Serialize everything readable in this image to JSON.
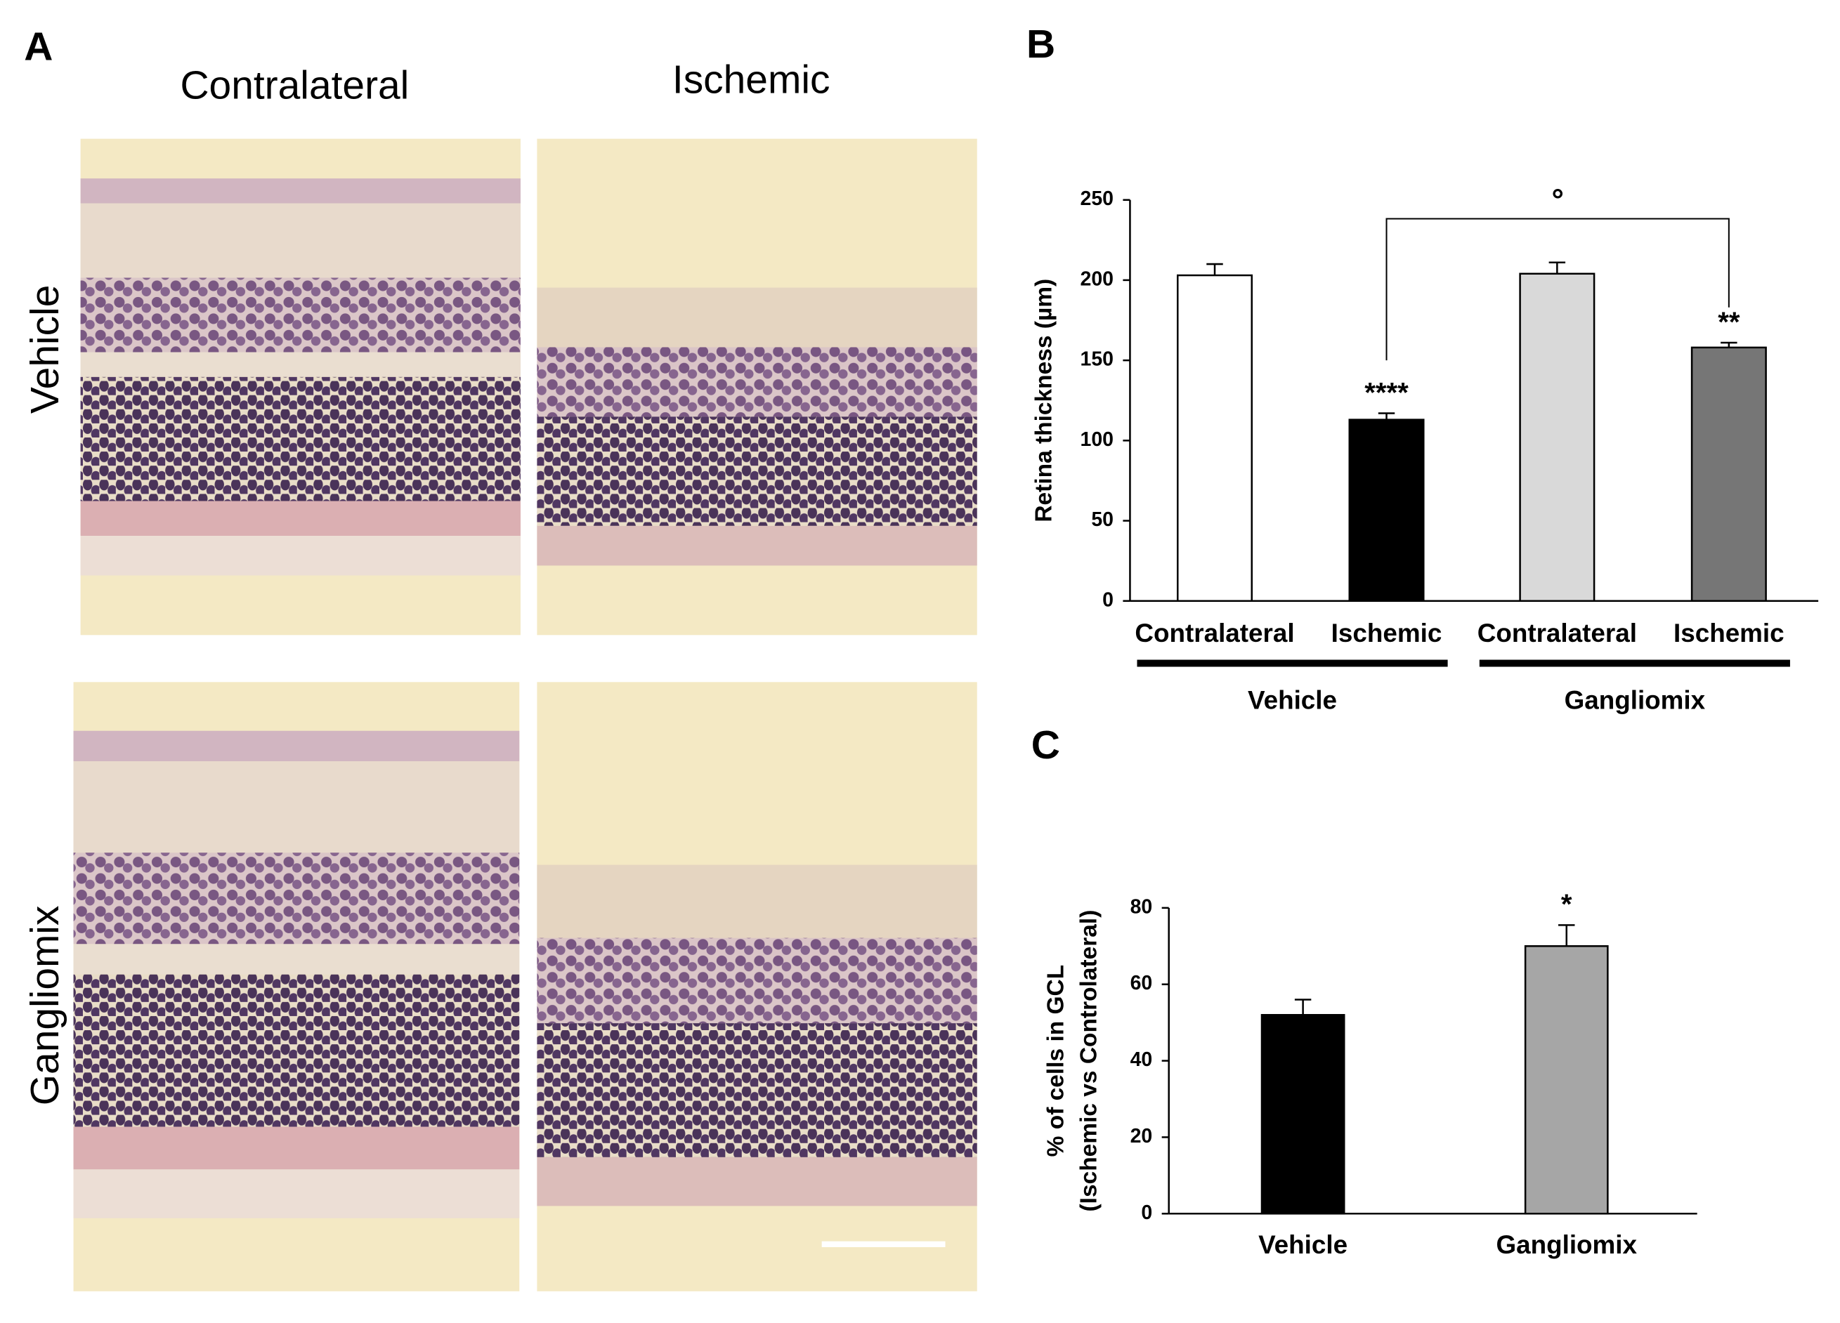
{
  "panel_a": {
    "label": "A",
    "columns": [
      "Contralateral",
      "Ischemic"
    ],
    "rows": [
      "Vehicle",
      "Gangliomix"
    ]
  },
  "chart_data": [
    {
      "type": "bar",
      "label": "B",
      "ylabel": [
        "Retina thickness (µm)"
      ],
      "ylim": [
        0,
        250
      ],
      "yticks": [
        0,
        50,
        100,
        150,
        200,
        250
      ],
      "groups": [
        {
          "name": "Vehicle",
          "categories": [
            "Contralateral",
            "Ischemic"
          ],
          "values": [
            203,
            113
          ],
          "errors": [
            7,
            4
          ],
          "colors": [
            "#ffffff",
            "#000000"
          ],
          "annotations": [
            null,
            "****"
          ]
        },
        {
          "name": "Gangliomix",
          "categories": [
            "Contralateral",
            "Ischemic"
          ],
          "values": [
            204,
            158
          ],
          "errors": [
            7,
            3
          ],
          "colors": [
            "#d9d9d9",
            "#767676"
          ],
          "annotations": [
            null,
            "**"
          ]
        }
      ],
      "bracket": {
        "text": "°"
      }
    },
    {
      "type": "bar",
      "label": "C",
      "ylabel": [
        "% of cells in GCL",
        "(Ischemic vs Controlateral)"
      ],
      "ylim": [
        0,
        80
      ],
      "yticks": [
        0,
        20,
        40,
        60,
        80
      ],
      "groups": [
        {
          "categories": [
            "Vehicle",
            "Gangliomix"
          ],
          "values": [
            52,
            70
          ],
          "errors": [
            4,
            5.5
          ],
          "colors": [
            "#000000",
            "#a6a6a6"
          ],
          "annotations": [
            null,
            "*"
          ]
        }
      ]
    }
  ]
}
